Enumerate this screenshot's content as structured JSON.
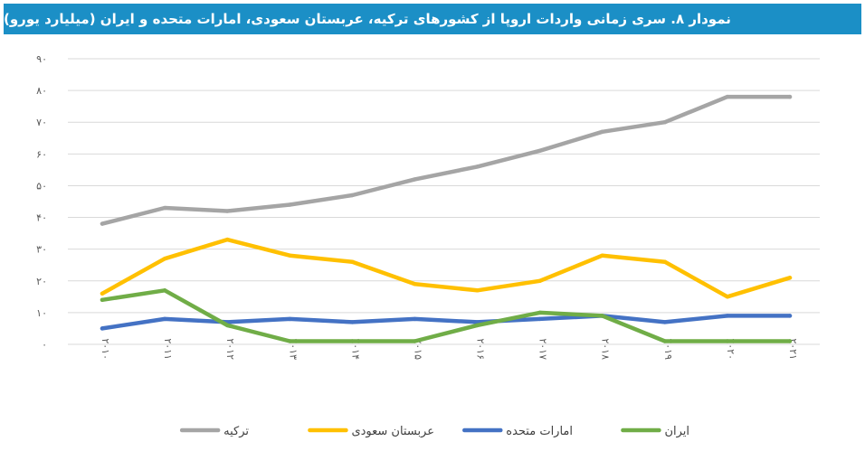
{
  "title": "نمودار ۸. سری زمانی واردات اروپا از کشورهای ترکیه، عربستان سعودی، امارات متحده و ایران (میلیارد یورو)",
  "chart_data": {
    "type": "line",
    "title": "نمودار ۸. سری زمانی واردات اروپا از کشورهای ترکیه، عربستان سعودی، امارات متحده و ایران (میلیارد یورو)",
    "xlabel": "",
    "ylabel": "",
    "ylim": [
      0,
      90
    ],
    "grid": true,
    "legend_position": "bottom",
    "categories": [
      "۲۰۱۰",
      "۲۰۱۱",
      "۲۰۱۲",
      "۲۰۱۳",
      "۲۰۱۴",
      "۲۰۱۵",
      "۲۰۱۶",
      "۲۰۱۷",
      "۲۰۱۸",
      "۲۰۱۹",
      "۲۰۲۰",
      "۲۰۲۱"
    ],
    "yticks": [
      {
        "value": 0,
        "label": "۰"
      },
      {
        "value": 10,
        "label": "۱۰"
      },
      {
        "value": 20,
        "label": "۲۰"
      },
      {
        "value": 30,
        "label": "۳۰"
      },
      {
        "value": 40,
        "label": "۴۰"
      },
      {
        "value": 50,
        "label": "۵۰"
      },
      {
        "value": 60,
        "label": "۶۰"
      },
      {
        "value": 70,
        "label": "۷۰"
      },
      {
        "value": 80,
        "label": "۸۰"
      },
      {
        "value": 90,
        "label": "۹۰"
      }
    ],
    "series": [
      {
        "name": "ترکیه",
        "color": "#a5a5a5",
        "values": [
          38,
          43,
          42,
          44,
          47,
          52,
          56,
          61,
          67,
          70,
          78,
          78
        ]
      },
      {
        "name": "عربستان سعودی",
        "color": "#ffc000",
        "values": [
          16,
          27,
          33,
          28,
          26,
          19,
          17,
          20,
          28,
          26,
          15,
          21
        ]
      },
      {
        "name": "امارات متحده",
        "color": "#4472c4",
        "values": [
          5,
          8,
          7,
          8,
          7,
          8,
          7,
          8,
          9,
          7,
          9,
          9
        ]
      },
      {
        "name": "ایران",
        "color": "#70ad47",
        "values": [
          14,
          17,
          6,
          1,
          1,
          1,
          6,
          10,
          9,
          1,
          1,
          1
        ]
      }
    ]
  }
}
